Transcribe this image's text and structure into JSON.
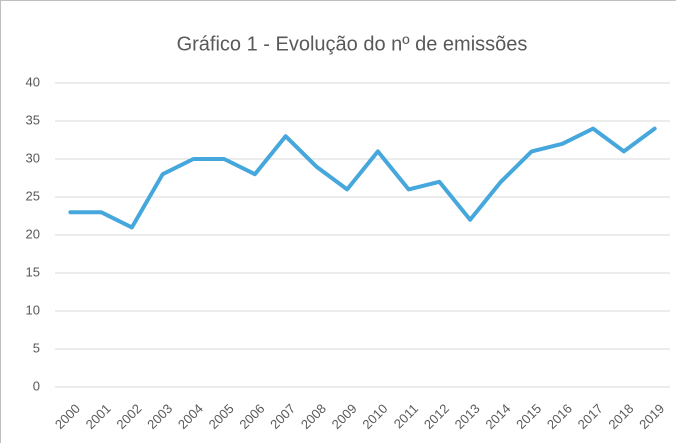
{
  "chart_data": {
    "type": "line",
    "title": "Gráfico 1 - Evolução do nº de emissões",
    "categories": [
      "2000",
      "2001",
      "2002",
      "2003",
      "2004",
      "2005",
      "2006",
      "2007",
      "2008",
      "2009",
      "2010",
      "2011",
      "2012",
      "2013",
      "2014",
      "2015",
      "2016",
      "2017",
      "2018",
      "2019"
    ],
    "values": [
      23,
      23,
      21,
      28,
      30,
      30,
      28,
      33,
      29,
      26,
      31,
      26,
      27,
      22,
      27,
      31,
      32,
      34,
      31,
      34
    ],
    "color": "#45a7db",
    "ylim": [
      0,
      40
    ],
    "yticks": [
      0,
      5,
      10,
      15,
      20,
      25,
      30,
      35,
      40
    ],
    "grid": true
  }
}
